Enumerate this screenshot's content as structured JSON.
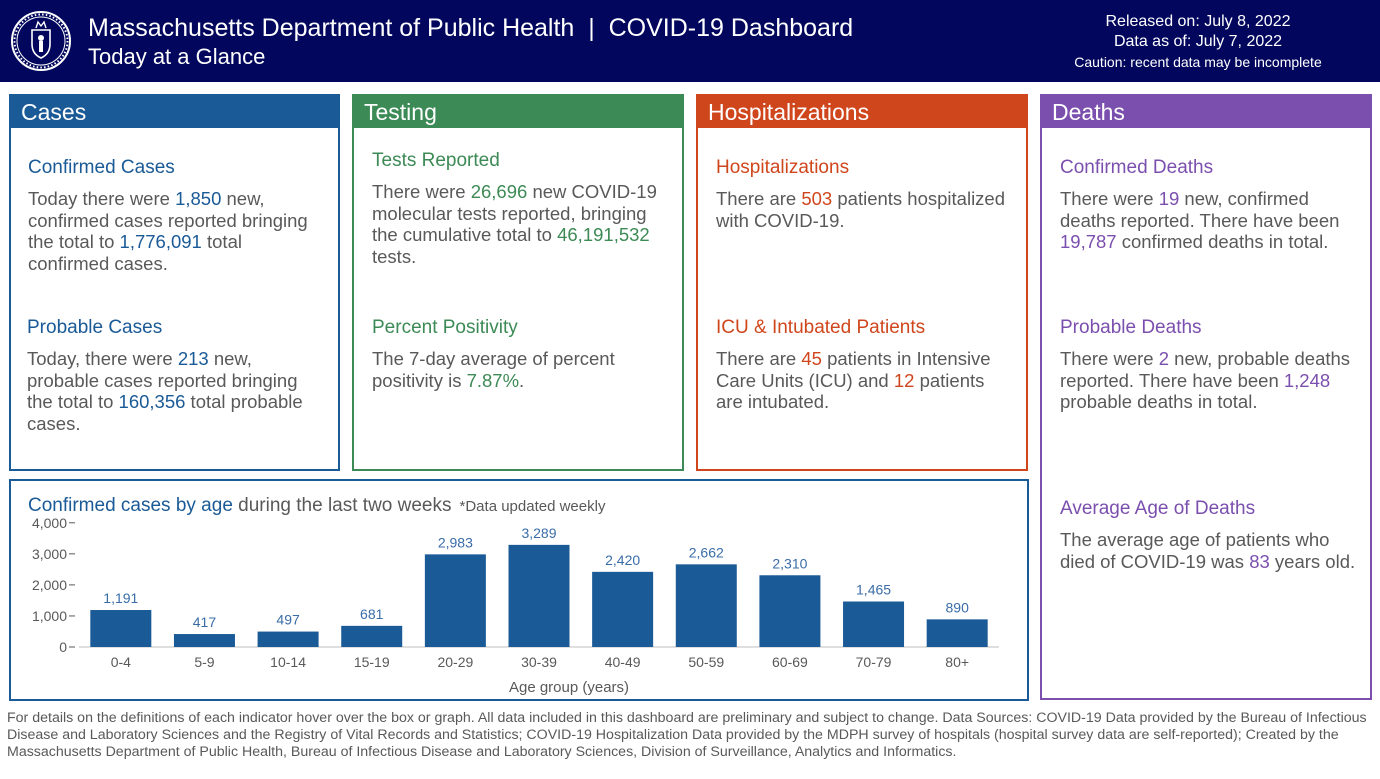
{
  "header": {
    "title": "Massachusetts Department of Public Health  |  COVID-19 Dashboard",
    "subtitle": "Today at a Glance",
    "released": "Released on: July 8, 2022",
    "data_as_of": "Data as of: July 7, 2022",
    "caution": "Caution: recent data may be incomplete",
    "seal_icon": "massachusetts-seal-icon"
  },
  "cases": {
    "heading": "Cases",
    "confirmed": {
      "title": "Confirmed Cases",
      "t1": "Today there were ",
      "new": "1,850",
      "t2": " new, confirmed cases reported bringing the total to ",
      "total": "1,776,091",
      "t3": " total confirmed cases."
    },
    "probable": {
      "title": "Probable Cases",
      "t1": "Today, there were ",
      "new": "213",
      "t2": " new, probable cases reported bringing the total to ",
      "total": "160,356",
      "t3": " total probable cases."
    }
  },
  "testing": {
    "heading": "Testing",
    "tests": {
      "title": "Tests Reported",
      "t1": "There were ",
      "new": "26,696",
      "t2": " new COVID-19 molecular tests reported, bringing the cumulative total to ",
      "total": "46,191,532",
      "t3": " tests."
    },
    "positivity": {
      "title": "Percent Positivity",
      "t1": "The 7-day average of percent positivity is ",
      "value": "7.87%",
      "t2": "."
    }
  },
  "hospitalizations": {
    "heading": "Hospitalizations",
    "hosp": {
      "title": "Hospitalizations",
      "t1": "There are ",
      "value": "503",
      "t2": " patients hospitalized with COVID-19."
    },
    "icu": {
      "title": "ICU & Intubated Patients",
      "t1": "There are ",
      "icu": "45",
      "t2": " patients in Intensive Care Units (ICU) and ",
      "intubated": "12",
      "t3": " patients are intubated."
    }
  },
  "deaths": {
    "heading": "Deaths",
    "confirmed": {
      "title": "Confirmed Deaths",
      "t1": "There were ",
      "new": "19",
      "t2": " new, confirmed deaths reported. There have been ",
      "total": "19,787",
      "t3": " confirmed deaths in total."
    },
    "probable": {
      "title": "Probable Deaths",
      "t1": "There were ",
      "new": "2",
      "t2": " new, probable deaths reported. There have been ",
      "total": "1,248",
      "t3": " probable deaths in total."
    },
    "avg_age": {
      "title": "Average Age of Deaths",
      "t1": "The average age of patients who died of COVID-19 was ",
      "value": "83",
      "t2": " years old."
    }
  },
  "chart_panel": {
    "title_highlight": "Confirmed cases by age",
    "title_rest": " during the last two weeks",
    "note": "*Data updated weekly"
  },
  "chart_data": {
    "type": "bar",
    "title": "Confirmed cases by age during the last two weeks",
    "xlabel": "Age group (years)",
    "ylabel": "",
    "categories": [
      "0-4",
      "5-9",
      "10-14",
      "15-19",
      "20-29",
      "30-39",
      "40-49",
      "50-59",
      "60-69",
      "70-79",
      "80+"
    ],
    "values": [
      1191,
      417,
      497,
      681,
      2983,
      3289,
      2420,
      2662,
      2310,
      1465,
      890
    ],
    "value_labels": [
      "1,191",
      "417",
      "497",
      "681",
      "2,983",
      "3,289",
      "2,420",
      "2,662",
      "2,310",
      "1,465",
      "890"
    ],
    "yticks": [
      0,
      1000,
      2000,
      3000,
      4000
    ],
    "ytick_labels": [
      "0",
      "1,000",
      "2,000",
      "3,000",
      "4,000"
    ],
    "ylim": [
      0,
      3800
    ],
    "bar_color": "#1a5a96",
    "label_color": "#3a6da8"
  },
  "footer": {
    "text": "For details on the definitions of each indicator hover over the box or graph. All data included in this dashboard are preliminary and subject to change. Data Sources: COVID-19 Data provided by the Bureau of Infectious Disease and Laboratory Sciences and the Registry of Vital Records and Statistics; COVID-19 Hospitalization Data provided by the MDPH survey of hospitals (hospital survey data are self-reported); Created by the Massachusetts Department of Public Health, Bureau of Infectious Disease and Laboratory Sciences, Division of Surveillance, Analytics and Informatics."
  }
}
